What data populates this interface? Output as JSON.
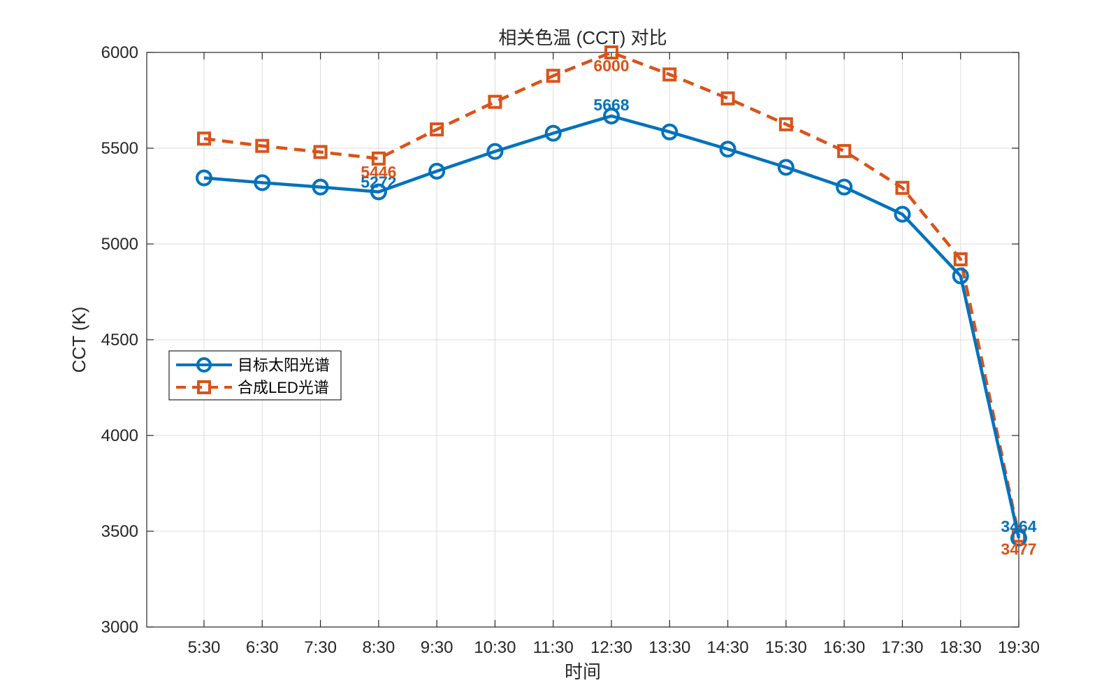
{
  "chart_data": {
    "type": "line",
    "title": "相关色温 (CCT) 对比",
    "xlabel": "时间",
    "ylabel": "CCT (K)",
    "categories": [
      "5:30",
      "6:30",
      "7:30",
      "8:30",
      "9:30",
      "10:30",
      "11:30",
      "12:30",
      "13:30",
      "14:30",
      "15:30",
      "16:30",
      "17:30",
      "18:30",
      "19:30"
    ],
    "ylim": [
      3000,
      6000
    ],
    "yticks": [
      3000,
      3500,
      4000,
      4500,
      5000,
      5500,
      6000
    ],
    "grid": true,
    "legend_position": "left",
    "series": [
      {
        "name": "目标太阳光谱",
        "color": "#0072BD",
        "marker": "circle",
        "line_style": "solid",
        "values": [
          5345,
          5320,
          5297,
          5272,
          5380,
          5483,
          5578,
          5668,
          5585,
          5495,
          5400,
          5297,
          5155,
          4833,
          3464
        ],
        "labels": [
          {
            "index": 3,
            "text": "5272"
          },
          {
            "index": 7,
            "text": "5668"
          },
          {
            "index": 14,
            "text": "3464"
          }
        ]
      },
      {
        "name": "合成LED光谱",
        "color": "#D95319",
        "marker": "square",
        "line_style": "dashed",
        "values": [
          5550,
          5512,
          5480,
          5446,
          5598,
          5742,
          5878,
          6000,
          5885,
          5760,
          5625,
          5485,
          5293,
          4920,
          3477
        ],
        "labels": [
          {
            "index": 3,
            "text": "5446"
          },
          {
            "index": 7,
            "text": "6000"
          },
          {
            "index": 14,
            "text": "3477"
          }
        ]
      }
    ]
  }
}
